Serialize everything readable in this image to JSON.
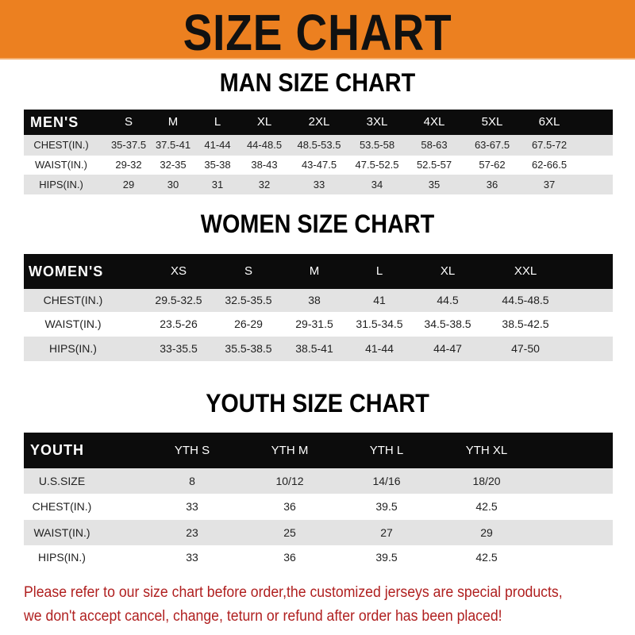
{
  "banner_title": "SIZE CHART",
  "colors": {
    "banner": "#ec8020",
    "header_row": "#0c0c0c",
    "stripe": "#e3e3e3",
    "note": "#b02020"
  },
  "men": {
    "title": "MAN SIZE CHART",
    "header": [
      "MEN'S",
      "S",
      "M",
      "L",
      "XL",
      "2XL",
      "3XL",
      "4XL",
      "5XL",
      "6XL"
    ],
    "rows": [
      [
        "CHEST(IN.)",
        "35-37.5",
        "37.5-41",
        "41-44",
        "44-48.5",
        "48.5-53.5",
        "53.5-58",
        "58-63",
        "63-67.5",
        "67.5-72"
      ],
      [
        "WAIST(IN.)",
        "29-32",
        "32-35",
        "35-38",
        "38-43",
        "43-47.5",
        "47.5-52.5",
        "52.5-57",
        "57-62",
        "62-66.5"
      ],
      [
        "HIPS(IN.)",
        "29",
        "30",
        "31",
        "32",
        "33",
        "34",
        "35",
        "36",
        "37"
      ]
    ]
  },
  "women": {
    "title": "WOMEN SIZE CHART",
    "header": [
      "WOMEN'S",
      "XS",
      "S",
      "M",
      "L",
      "XL",
      "XXL"
    ],
    "rows": [
      [
        "CHEST(IN.)",
        "29.5-32.5",
        "32.5-35.5",
        "38",
        "41",
        "44.5",
        "44.5-48.5"
      ],
      [
        "WAIST(IN.)",
        "23.5-26",
        "26-29",
        "29-31.5",
        "31.5-34.5",
        "34.5-38.5",
        "38.5-42.5"
      ],
      [
        "HIPS(IN.)",
        "33-35.5",
        "35.5-38.5",
        "38.5-41",
        "41-44",
        "44-47",
        "47-50"
      ]
    ]
  },
  "youth": {
    "title": "YOUTH SIZE CHART",
    "header": [
      "YOUTH",
      "YTH S",
      "YTH M",
      "YTH L",
      "YTH XL"
    ],
    "rows": [
      [
        "U.S.SIZE",
        "8",
        "10/12",
        "14/16",
        "18/20"
      ],
      [
        "CHEST(IN.)",
        "33",
        "36",
        "39.5",
        "42.5"
      ],
      [
        "WAIST(IN.)",
        "23",
        "25",
        "27",
        "29"
      ],
      [
        "HIPS(IN.)",
        "33",
        "36",
        "39.5",
        "42.5"
      ]
    ]
  },
  "note": [
    "Please refer to our size chart before order,the customized jerseys are special products,",
    "we don't accept cancel, change, teturn or refund after order has been placed!"
  ]
}
